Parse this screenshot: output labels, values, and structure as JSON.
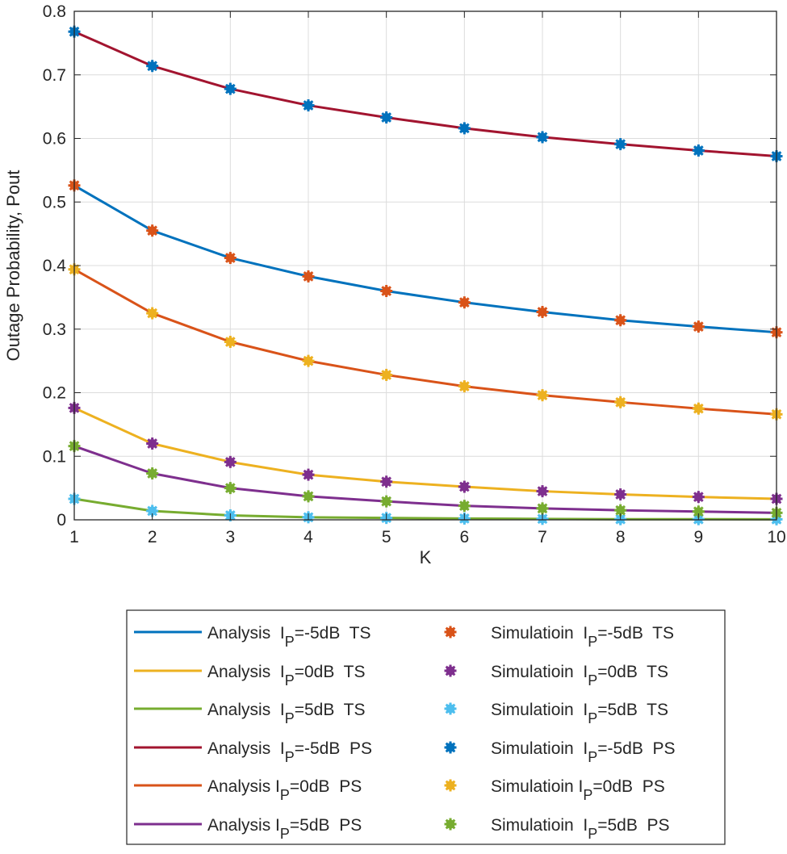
{
  "chart_data": {
    "type": "line",
    "title": "",
    "xlabel": "K",
    "ylabel": "Outage Probability, Pout",
    "xlim": [
      1,
      10
    ],
    "ylim": [
      0,
      0.8
    ],
    "xticks": [
      1,
      2,
      3,
      4,
      5,
      6,
      7,
      8,
      9,
      10
    ],
    "yticks": [
      0,
      0.1,
      0.2,
      0.3,
      0.4,
      0.5,
      0.6,
      0.7,
      0.8
    ],
    "ytick_labels": [
      "0",
      "0.1",
      "0.2",
      "0.3",
      "0.4",
      "0.5",
      "0.6",
      "0.7",
      "0.8"
    ],
    "grid": true,
    "legend_placement": "below",
    "x": [
      1,
      2,
      3,
      4,
      5,
      6,
      7,
      8,
      9,
      10
    ],
    "series": [
      {
        "name_pre": "Analysis  I",
        "name_sub": "P",
        "name_post": "=-5dB  TS",
        "style": "line",
        "color": "#0072BD",
        "values": [
          0.526,
          0.455,
          0.412,
          0.383,
          0.36,
          0.342,
          0.327,
          0.314,
          0.304,
          0.295
        ]
      },
      {
        "name_pre": "Analysis  I",
        "name_sub": "P",
        "name_post": "=0dB  TS",
        "style": "line",
        "color": "#EDB120",
        "values": [
          0.176,
          0.12,
          0.091,
          0.071,
          0.06,
          0.052,
          0.045,
          0.04,
          0.036,
          0.033
        ]
      },
      {
        "name_pre": "Analysis  I",
        "name_sub": "P",
        "name_post": "=5dB  TS",
        "style": "line",
        "color": "#77AC30",
        "values": [
          0.033,
          0.014,
          0.007,
          0.004,
          0.003,
          0.002,
          0.0015,
          0.001,
          0.001,
          0.0008
        ]
      },
      {
        "name_pre": "Analysis  I",
        "name_sub": "P",
        "name_post": "=-5dB  PS",
        "style": "line",
        "color": "#A2142F",
        "values": [
          0.768,
          0.714,
          0.678,
          0.652,
          0.633,
          0.616,
          0.602,
          0.591,
          0.581,
          0.572
        ]
      },
      {
        "name_pre": "Analysis I",
        "name_sub": "P",
        "name_post": "=0dB  PS",
        "style": "line",
        "color": "#D95319",
        "values": [
          0.394,
          0.325,
          0.28,
          0.25,
          0.228,
          0.21,
          0.196,
          0.185,
          0.175,
          0.166
        ]
      },
      {
        "name_pre": "Analysis I",
        "name_sub": "P",
        "name_post": "=5dB  PS",
        "style": "line",
        "color": "#7E2F8E",
        "values": [
          0.116,
          0.073,
          0.05,
          0.037,
          0.029,
          0.022,
          0.018,
          0.015,
          0.013,
          0.011
        ]
      },
      {
        "name_pre": "Simulatioin  I",
        "name_sub": "P",
        "name_post": "=-5dB  TS",
        "style": "marker",
        "marker": "asterisk",
        "color": "#D95319",
        "values": [
          0.526,
          0.455,
          0.412,
          0.383,
          0.36,
          0.342,
          0.327,
          0.314,
          0.304,
          0.295
        ]
      },
      {
        "name_pre": "Simulatioin  I",
        "name_sub": "P",
        "name_post": "=0dB  TS",
        "style": "marker",
        "marker": "asterisk",
        "color": "#7E2F8E",
        "values": [
          0.176,
          0.12,
          0.091,
          0.071,
          0.06,
          0.052,
          0.045,
          0.04,
          0.036,
          0.033
        ]
      },
      {
        "name_pre": "Simulatioin  I",
        "name_sub": "P",
        "name_post": "=5dB  TS",
        "style": "marker",
        "marker": "asterisk",
        "color": "#4DBEEE",
        "values": [
          0.033,
          0.014,
          0.007,
          0.004,
          0.003,
          0.002,
          0.0015,
          0.001,
          0.001,
          0.0008
        ]
      },
      {
        "name_pre": "Simulatioin  I",
        "name_sub": "P",
        "name_post": "=-5dB  PS",
        "style": "marker",
        "marker": "asterisk",
        "color": "#0072BD",
        "values": [
          0.768,
          0.714,
          0.678,
          0.652,
          0.633,
          0.616,
          0.602,
          0.591,
          0.581,
          0.572
        ]
      },
      {
        "name_pre": "Simulatioin I",
        "name_sub": "P",
        "name_post": "=0dB  PS",
        "style": "marker",
        "marker": "asterisk",
        "color": "#EDB120",
        "values": [
          0.394,
          0.325,
          0.28,
          0.25,
          0.228,
          0.21,
          0.196,
          0.185,
          0.175,
          0.166
        ]
      },
      {
        "name_pre": "Simulatioin  I",
        "name_sub": "P",
        "name_post": "=5dB  PS",
        "style": "marker",
        "marker": "asterisk",
        "color": "#77AC30",
        "values": [
          0.116,
          0.073,
          0.05,
          0.037,
          0.029,
          0.022,
          0.018,
          0.015,
          0.013,
          0.011
        ]
      }
    ]
  }
}
